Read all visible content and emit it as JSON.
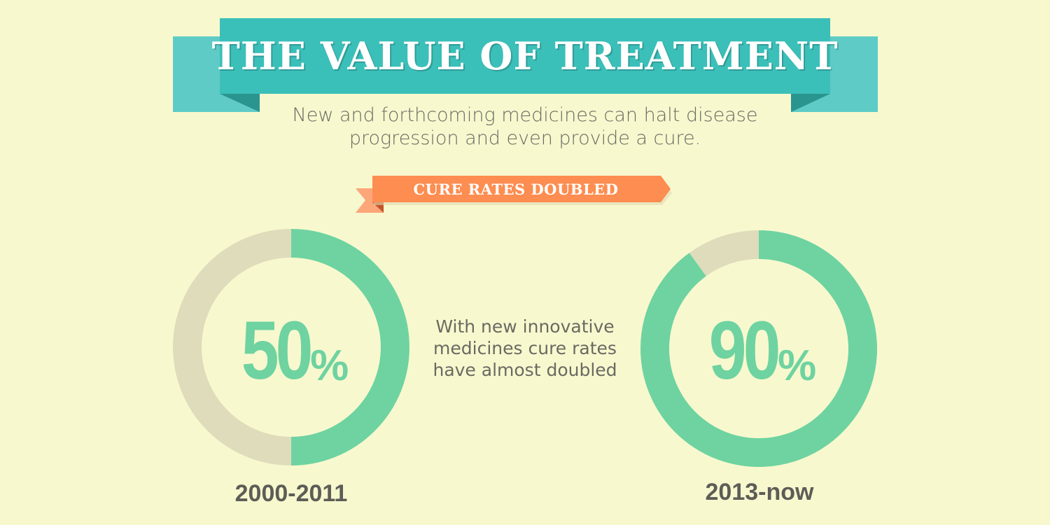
{
  "header": {
    "title": "THE VALUE OF TREATMENT",
    "subtitle_line1": "New and forthcoming medicines can halt disease",
    "subtitle_line2": "progression and even provide a cure."
  },
  "ribbon": {
    "label": "CURE RATES DOUBLED"
  },
  "stats": [
    {
      "value": 50,
      "value_text": "50",
      "unit": "%",
      "period": "2000-2011"
    },
    {
      "value": 90,
      "value_text": "90",
      "unit": "%",
      "period": "2013-now"
    }
  ],
  "middle": {
    "line1": "With new innovative",
    "line2": "medicines cure rates",
    "line3": "have almost doubled"
  },
  "colors": {
    "background": "#f8f8cf",
    "banner": "#3bbfb9",
    "banner_wing": "#5ecbc6",
    "banner_fold": "#2a948f",
    "ribbon": "#fd8d50",
    "ribbon_fold": "#e06a35",
    "donut_filled": "#6ed3a0",
    "donut_empty": "#dedcba"
  }
}
